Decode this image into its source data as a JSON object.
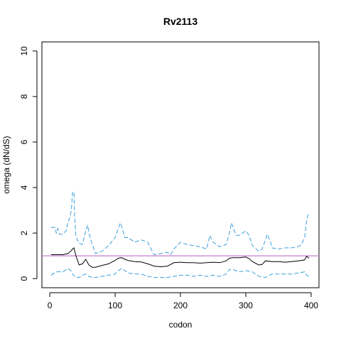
{
  "chart_data": {
    "type": "line",
    "title": "Rv2113",
    "xlabel": "codon",
    "ylabel": "omega (dN/dS)",
    "xlim": [
      -12,
      412
    ],
    "ylim": [
      -0.4,
      10.4
    ],
    "x_ticks": [
      0,
      100,
      200,
      300,
      400
    ],
    "x_tick_labels": [
      "0",
      "100",
      "200",
      "300",
      "400"
    ],
    "y_ticks": [
      0,
      2,
      4,
      6,
      8,
      10
    ],
    "y_tick_labels": [
      "0",
      "2",
      "4",
      "6",
      "8",
      "10"
    ],
    "reference_line": {
      "y": 1,
      "color": "#c77cd1"
    },
    "grid": false,
    "legend": "none",
    "colors": {
      "median": "#000000",
      "bounds": "#3b9fdc"
    },
    "series": [
      {
        "role": "median",
        "style": "solid",
        "x": [
          2,
          10,
          20,
          28,
          32,
          35,
          37,
          40,
          45,
          50,
          55,
          60,
          65,
          70,
          80,
          90,
          100,
          105,
          110,
          115,
          120,
          130,
          140,
          150,
          160,
          170,
          180,
          185,
          190,
          200,
          210,
          220,
          230,
          240,
          250,
          260,
          270,
          275,
          280,
          290,
          300,
          305,
          310,
          320,
          325,
          330,
          340,
          350,
          360,
          370,
          380,
          390,
          393,
          397
        ],
        "y": [
          1.05,
          1.05,
          1.05,
          1.1,
          1.2,
          1.3,
          1.35,
          1.0,
          0.6,
          0.65,
          0.85,
          0.6,
          0.5,
          0.5,
          0.58,
          0.65,
          0.8,
          0.9,
          0.92,
          0.85,
          0.8,
          0.75,
          0.73,
          0.65,
          0.55,
          0.52,
          0.55,
          0.62,
          0.7,
          0.72,
          0.7,
          0.7,
          0.68,
          0.7,
          0.72,
          0.7,
          0.78,
          0.9,
          0.92,
          0.92,
          0.95,
          0.88,
          0.75,
          0.6,
          0.62,
          0.78,
          0.75,
          0.75,
          0.72,
          0.75,
          0.78,
          0.82,
          0.98,
          0.9
        ]
      },
      {
        "role": "upper-bound",
        "style": "dashed",
        "x": [
          2,
          8,
          10,
          12,
          15,
          20,
          25,
          28,
          30,
          33,
          35,
          37,
          38,
          40,
          42,
          45,
          50,
          55,
          58,
          60,
          65,
          70,
          80,
          90,
          100,
          105,
          108,
          110,
          113,
          115,
          120,
          130,
          140,
          150,
          155,
          160,
          170,
          180,
          185,
          190,
          200,
          210,
          220,
          230,
          240,
          245,
          250,
          260,
          270,
          275,
          278,
          280,
          285,
          290,
          300,
          305,
          310,
          320,
          325,
          330,
          333,
          338,
          340,
          350,
          360,
          370,
          380,
          385,
          390,
          393,
          395,
          398
        ],
        "y": [
          2.25,
          2.25,
          2.0,
          2.2,
          1.95,
          1.95,
          2.1,
          2.5,
          2.6,
          3.0,
          3.8,
          3.8,
          2.8,
          1.9,
          1.7,
          1.55,
          1.5,
          2.1,
          2.35,
          2.0,
          1.5,
          1.1,
          1.2,
          1.45,
          1.8,
          2.2,
          2.45,
          2.3,
          2.0,
          1.8,
          1.8,
          1.6,
          1.7,
          1.6,
          1.3,
          1.05,
          1.1,
          1.15,
          1.05,
          1.3,
          1.6,
          1.5,
          1.45,
          1.4,
          1.3,
          1.9,
          1.6,
          1.4,
          1.5,
          2.0,
          2.45,
          2.3,
          1.9,
          1.9,
          2.1,
          1.9,
          1.45,
          1.2,
          1.3,
          1.7,
          1.95,
          1.6,
          1.35,
          1.3,
          1.35,
          1.35,
          1.4,
          1.5,
          1.8,
          2.5,
          2.8,
          2.7
        ]
      },
      {
        "role": "lower-bound",
        "style": "dashed",
        "x": [
          2,
          10,
          20,
          28,
          32,
          35,
          38,
          40,
          45,
          50,
          55,
          60,
          65,
          70,
          80,
          90,
          100,
          105,
          110,
          115,
          120,
          130,
          140,
          150,
          160,
          170,
          180,
          190,
          200,
          210,
          220,
          230,
          240,
          250,
          260,
          270,
          275,
          280,
          290,
          300,
          310,
          320,
          330,
          340,
          350,
          360,
          370,
          380,
          390,
          393,
          397
        ],
        "y": [
          0.15,
          0.3,
          0.3,
          0.45,
          0.35,
          0.2,
          0.1,
          0.05,
          0.05,
          0.15,
          0.2,
          0.1,
          0.05,
          0.05,
          0.1,
          0.15,
          0.2,
          0.35,
          0.45,
          0.35,
          0.25,
          0.2,
          0.2,
          0.1,
          0.05,
          0.05,
          0.05,
          0.1,
          0.15,
          0.15,
          0.1,
          0.15,
          0.1,
          0.15,
          0.1,
          0.2,
          0.4,
          0.4,
          0.3,
          0.35,
          0.3,
          0.1,
          0.05,
          0.2,
          0.2,
          0.2,
          0.2,
          0.25,
          0.3,
          0.15,
          0.1
        ]
      }
    ]
  }
}
